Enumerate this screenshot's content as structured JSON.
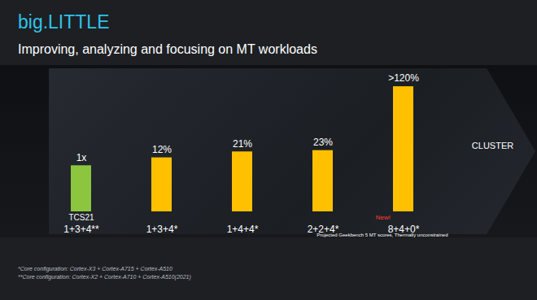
{
  "chart_data": {
    "type": "bar",
    "title": "big.LITTLE",
    "subtitle": "Improving, analyzing and focusing on MT workloads",
    "categories": [
      "1+3+4**",
      "1+3+4*",
      "1+4+4*",
      "2+2+4*",
      "8+4+0*"
    ],
    "values": [
      0,
      12,
      21,
      23,
      120
    ],
    "value_labels": [
      "1x",
      "12%",
      "21%",
      "23%",
      ">120%"
    ],
    "colors": [
      "#8cc63f",
      "#ffc000",
      "#ffc000",
      "#ffc000",
      "#ffc000"
    ],
    "ylim": [
      -70,
      130
    ],
    "yticks": [],
    "grid": false,
    "data_labels": true,
    "tick_labels": "x",
    "annotations": [
      {
        "text": "TCS21",
        "category": "1+3+4**"
      },
      {
        "text": "New!",
        "category": "8+4+0*",
        "color": "#ff3b30"
      }
    ],
    "side_label": "CLUSTER",
    "note": "Projected Geekbench 5 MT scores, Thermally unconstrained",
    "footnotes": [
      "*Core configuration: Cortex-X3 + Cortex-A715 + Cortex-A510",
      "**Core configuration: Cortex-X2 + Cortex-A710 + Cortex-A510(2021)"
    ]
  }
}
